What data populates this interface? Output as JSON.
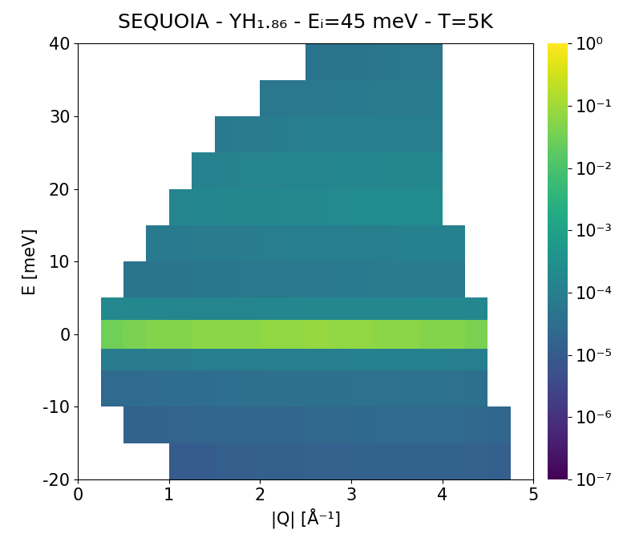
{
  "chart_data": {
    "type": "heatmap",
    "title": "SEQUOIA - YH₁.₈₆ - Eᵢ=45 meV - T=5K",
    "x_label": "|Q| [Å⁻¹]",
    "y_label": "E [meV]",
    "color": "viridis",
    "log": true,
    "x_edges": [
      0,
      0.25,
      0.5,
      0.75,
      1,
      1.25,
      1.5,
      1.75,
      2,
      2.25,
      2.5,
      2.75,
      3,
      3.25,
      3.5,
      3.75,
      4,
      4.25,
      4.5,
      4.75,
      5
    ],
    "y_edges": [
      -20,
      -15,
      -10,
      -5,
      -2,
      2,
      5,
      10,
      15,
      20,
      25,
      30,
      35,
      40
    ],
    "cells": [
      [
        null,
        null,
        null,
        null,
        1e-05,
        1e-05,
        1.2e-05,
        1.2e-05,
        1.3e-05,
        1.3e-05,
        1.4e-05,
        1.4e-05,
        1.5e-05,
        1.5e-05,
        1.6e-05,
        1.6e-05,
        1.5e-05,
        1.4e-05,
        1.2e-05,
        null
      ],
      [
        null,
        null,
        1.5e-05,
        1.6e-05,
        1.7e-05,
        1.8e-05,
        1.9e-05,
        2e-05,
        2e-05,
        2.1e-05,
        2.2e-05,
        2.2e-05,
        2.3e-05,
        2.4e-05,
        2.4e-05,
        2.5e-05,
        2.4e-05,
        2.2e-05,
        2e-05,
        null
      ],
      [
        null,
        2.5e-05,
        2.6e-05,
        2.8e-05,
        3e-05,
        3e-05,
        3.2e-05,
        3.3e-05,
        3.4e-05,
        3.5e-05,
        3.6e-05,
        3.7e-05,
        3.8e-05,
        3.9e-05,
        4e-05,
        4e-05,
        3.8e-05,
        3.5e-05,
        null,
        null
      ],
      [
        null,
        8e-05,
        8e-05,
        8e-05,
        8e-05,
        9e-05,
        9e-05,
        9e-05,
        0.0001,
        0.0001,
        0.0001,
        0.0001,
        0.00011,
        0.00011,
        0.00011,
        0.00011,
        0.0001,
        9e-05,
        null,
        null
      ],
      [
        null,
        0.03,
        0.04,
        0.05,
        0.05,
        0.06,
        0.06,
        0.06,
        0.07,
        0.07,
        0.08,
        0.07,
        0.07,
        0.06,
        0.06,
        0.05,
        0.05,
        0.04,
        null,
        null
      ],
      [
        null,
        0.0002,
        0.00018,
        0.00016,
        0.00015,
        0.00015,
        0.00015,
        0.00015,
        0.00016,
        0.00016,
        0.00017,
        0.00017,
        0.00018,
        0.00018,
        0.00018,
        0.00018,
        0.00017,
        0.00016,
        null,
        null
      ],
      [
        null,
        null,
        5e-05,
        5e-05,
        5e-05,
        5.5e-05,
        5.5e-05,
        6e-05,
        6e-05,
        6.5e-05,
        6.5e-05,
        7e-05,
        7e-05,
        7.5e-05,
        7.5e-05,
        8e-05,
        8e-05,
        null,
        null,
        null
      ],
      [
        null,
        null,
        null,
        7e-05,
        7e-05,
        7.5e-05,
        8e-05,
        8e-05,
        8.5e-05,
        9e-05,
        9e-05,
        9.5e-05,
        0.0001,
        0.0001,
        0.00011,
        0.00011,
        0.00011,
        null,
        null,
        null
      ],
      [
        null,
        null,
        null,
        null,
        0.00015,
        0.00016,
        0.00017,
        0.00018,
        0.00019,
        0.0002,
        0.0002,
        0.00021,
        0.00022,
        0.00022,
        0.00023,
        0.00023,
        null,
        null,
        null,
        null
      ],
      [
        null,
        null,
        null,
        null,
        null,
        0.00012,
        0.00013,
        0.00014,
        0.00014,
        0.00015,
        0.00015,
        0.00016,
        0.00016,
        0.00017,
        0.00017,
        0.00018,
        null,
        null,
        null,
        null
      ],
      [
        null,
        null,
        null,
        null,
        null,
        null,
        7e-05,
        7.5e-05,
        8e-05,
        8.5e-05,
        9e-05,
        9e-05,
        9.5e-05,
        0.0001,
        0.0001,
        0.0001,
        null,
        null,
        null,
        null
      ],
      [
        null,
        null,
        null,
        null,
        null,
        null,
        null,
        null,
        6e-05,
        6e-05,
        6.5e-05,
        7e-05,
        7e-05,
        7.5e-05,
        8e-05,
        8e-05,
        null,
        null,
        null,
        null
      ],
      [
        null,
        null,
        null,
        null,
        null,
        null,
        null,
        null,
        null,
        null,
        4.5e-05,
        5e-05,
        5e-05,
        5.5e-05,
        6e-05,
        6e-05,
        null,
        null,
        null,
        null
      ]
    ],
    "xlim": [
      0,
      5
    ],
    "xticks": [
      0,
      1,
      2,
      3,
      4,
      5
    ],
    "ylim": [
      -20,
      40
    ],
    "yticks": [
      -20,
      -10,
      0,
      10,
      20,
      30,
      40
    ],
    "colorbar_range": [
      1e-07,
      1
    ],
    "colorbar_ticks": [
      {
        "value": 1e-07,
        "label": "10⁻⁷"
      },
      {
        "value": 1e-06,
        "label": "10⁻⁶"
      },
      {
        "value": 1e-05,
        "label": "10⁻⁵"
      },
      {
        "value": 0.0001,
        "label": "10⁻⁴"
      },
      {
        "value": 0.001,
        "label": "10⁻³"
      },
      {
        "value": 0.01,
        "label": "10⁻²"
      },
      {
        "value": 0.1,
        "label": "10⁻¹"
      },
      {
        "value": 1,
        "label": "10⁰"
      }
    ]
  }
}
